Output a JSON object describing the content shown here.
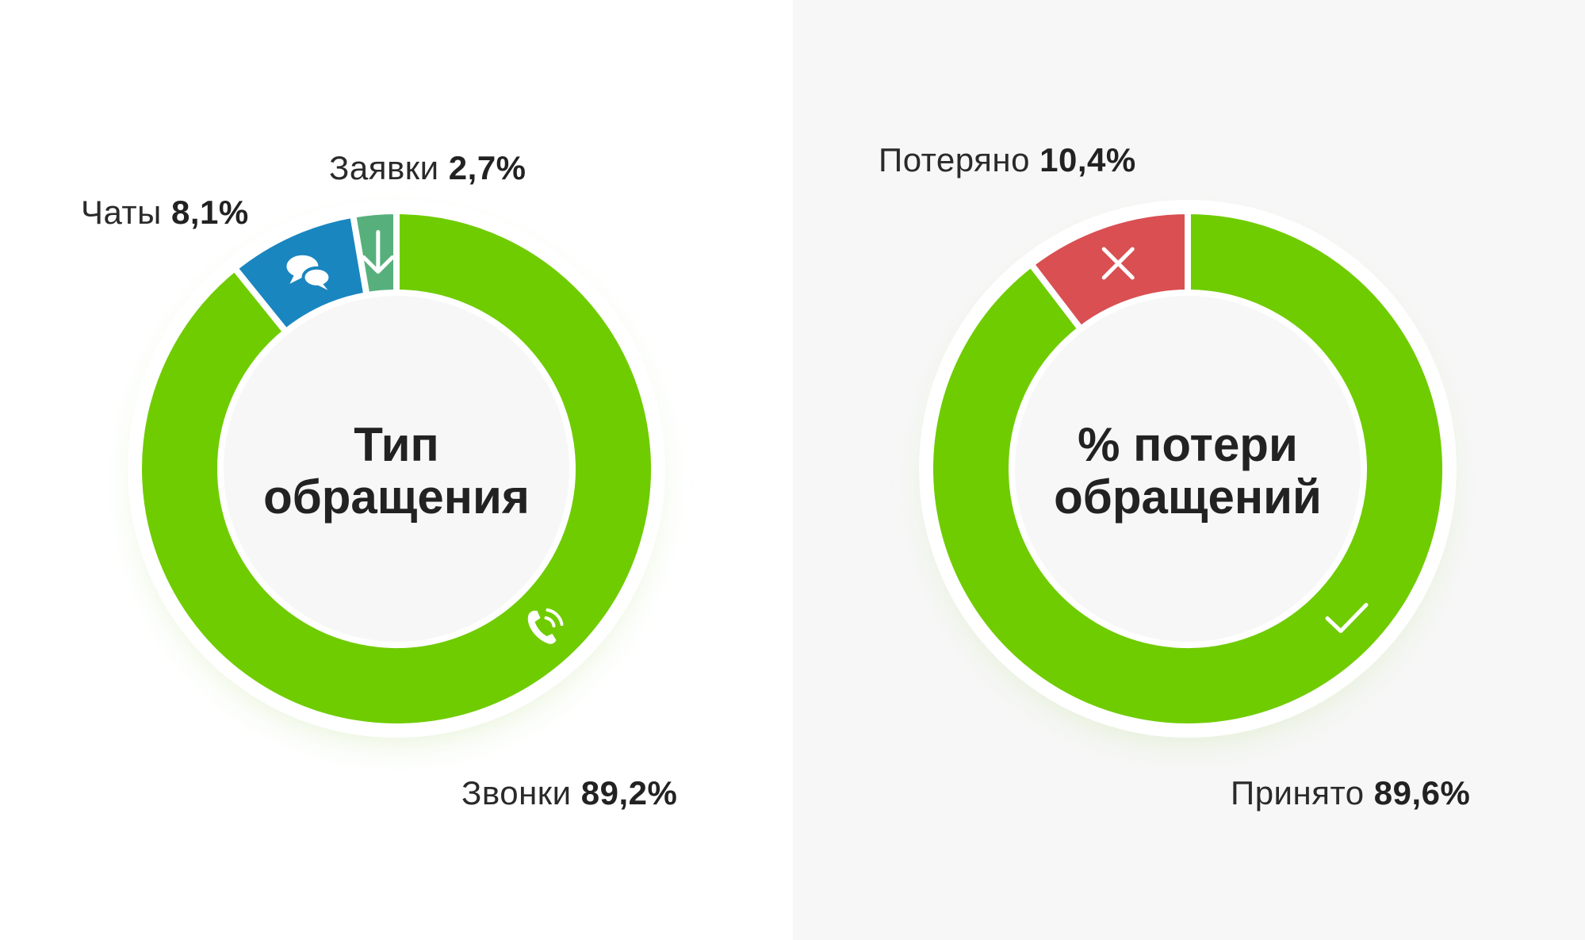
{
  "chart_data": [
    {
      "type": "pie",
      "donut": true,
      "title": [
        "Тип",
        "обращения"
      ],
      "slices": [
        {
          "name": "Звонки",
          "value": 89.2,
          "value_label": "89,2%",
          "color": "#6fcc00",
          "icon": "phone-icon"
        },
        {
          "name": "Чаты",
          "value": 8.1,
          "value_label": "8,1%",
          "color": "#1a86c0",
          "icon": "chat-bubbles-icon"
        },
        {
          "name": "Заявки",
          "value": 2.7,
          "value_label": "2,7%",
          "color": "#57b07c",
          "icon": "arrow-down-icon"
        }
      ],
      "legend": "labels-around-chart"
    },
    {
      "type": "pie",
      "donut": true,
      "title": [
        "% потери",
        "обращений"
      ],
      "slices": [
        {
          "name": "Принято",
          "value": 89.6,
          "value_label": "89,6%",
          "color": "#6fcc00",
          "icon": "check-icon"
        },
        {
          "name": "Потеряно",
          "value": 10.4,
          "value_label": "10,4%",
          "color": "#d94f52",
          "icon": "close-icon"
        }
      ],
      "legend": "labels-around-chart"
    }
  ],
  "colors": {
    "inner_fill": "#f7f7f7",
    "gap": "#ffffff",
    "text": "#222222"
  }
}
